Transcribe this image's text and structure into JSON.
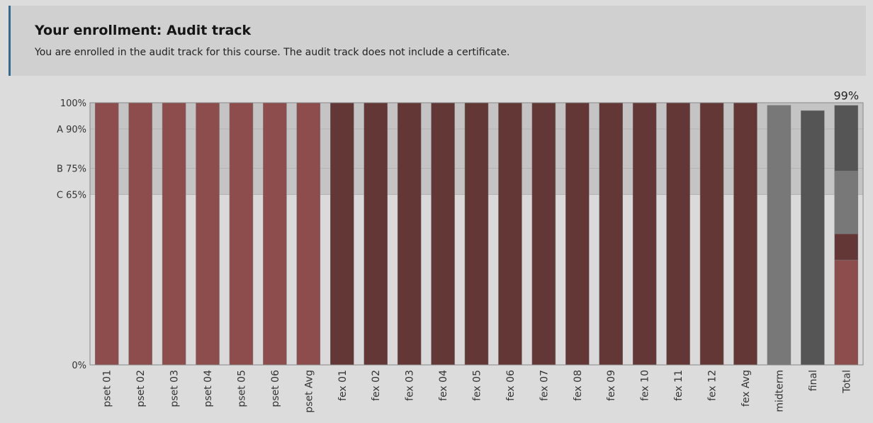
{
  "enrollment": {
    "title": "Your enrollment: Audit track",
    "message": "You are enrolled in the audit track for this course. The audit track does not include a certificate."
  },
  "chart_data": {
    "type": "bar",
    "title": "",
    "xlabel": "",
    "ylabel": "",
    "ylim": [
      0,
      100
    ],
    "grade_cutoffs": [
      {
        "label": "A 90%",
        "value": 90
      },
      {
        "label": "B 75%",
        "value": 75
      },
      {
        "label": "C 65%",
        "value": 65
      }
    ],
    "y_tick_labels": [
      {
        "label": "100%",
        "value": 100
      },
      {
        "label": "0%",
        "value": 0
      }
    ],
    "categories": [
      "pset 01",
      "pset 02",
      "pset 03",
      "pset 04",
      "pset 05",
      "pset 06",
      "pset Avg",
      "fex 01",
      "fex 02",
      "fex 03",
      "fex 04",
      "fex 05",
      "fex 06",
      "fex 07",
      "fex 08",
      "fex 09",
      "fex 10",
      "fex 11",
      "fex 12",
      "fex Avg",
      "midterm",
      "final",
      "Total"
    ],
    "values": [
      100,
      100,
      100,
      100,
      100,
      100,
      100,
      100,
      100,
      100,
      100,
      100,
      100,
      100,
      100,
      100,
      100,
      100,
      100,
      100,
      99,
      97,
      99
    ],
    "bar_colors": [
      "#8e4d4d",
      "#8e4d4d",
      "#8e4d4d",
      "#8e4d4d",
      "#8e4d4d",
      "#8e4d4d",
      "#8e4d4d",
      "#643737",
      "#643737",
      "#643737",
      "#643737",
      "#643737",
      "#643737",
      "#643737",
      "#643737",
      "#643737",
      "#643737",
      "#643737",
      "#643737",
      "#643737",
      "#787878",
      "#555555",
      "stacked"
    ],
    "total_segments": [
      {
        "component": "pset",
        "value": 40,
        "color": "#8e4d4d"
      },
      {
        "component": "fex",
        "value": 10,
        "color": "#643737"
      },
      {
        "component": "midterm",
        "value": 24,
        "color": "#787878"
      },
      {
        "component": "final",
        "value": 25,
        "color": "#555555"
      }
    ],
    "total_label": "99%",
    "colors": {
      "passing_band": "#c4c4c4",
      "plot_bg": "#dadada",
      "frame": "#888888"
    }
  }
}
